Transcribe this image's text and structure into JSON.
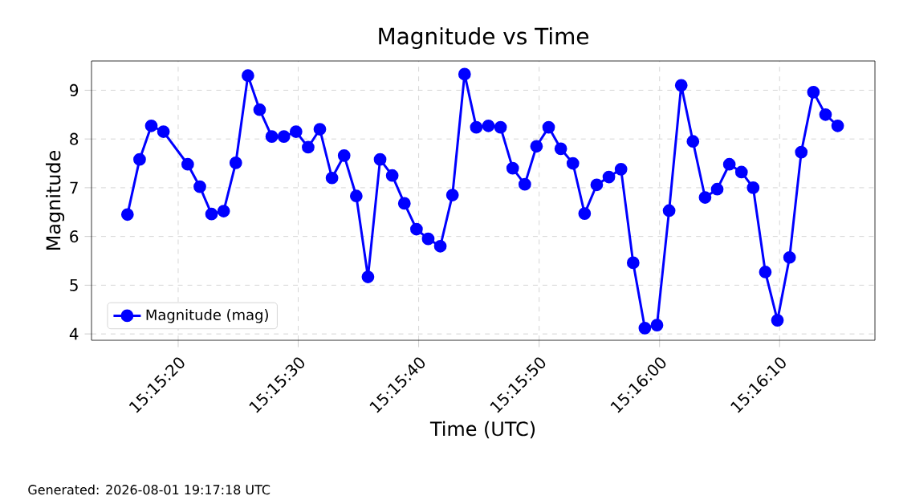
{
  "chart_data": {
    "type": "line",
    "title": "Magnitude vs Time",
    "xlabel": "Time (UTC)",
    "ylabel": "Magnitude",
    "annotations": [
      "Generated: 2026-08-01 19:17:18 UTC"
    ],
    "x": [
      15.25439,
      15.25467,
      15.25494,
      15.25522,
      15.25578,
      15.25606,
      15.25633,
      15.25661,
      15.25689,
      15.25717,
      15.25744,
      15.25772,
      15.258,
      15.25828,
      15.25856,
      15.25883,
      15.25911,
      15.25939,
      15.25967,
      15.25994,
      15.26022,
      15.2605,
      15.26078,
      15.26106,
      15.26133,
      15.26161,
      15.26189,
      15.26217,
      15.26244,
      15.26272,
      15.263,
      15.26328,
      15.26356,
      15.26383,
      15.26411,
      15.26439,
      15.26467,
      15.26494,
      15.26522,
      15.2655,
      15.26578,
      15.26606,
      15.26633,
      15.26661,
      15.26689,
      15.26717,
      15.26744,
      15.26772,
      15.268,
      15.26828,
      15.26856,
      15.26883,
      15.26911,
      15.26939,
      15.26967,
      15.26994,
      15.27022,
      15.2705,
      15.27078
    ],
    "series": [
      {
        "name": "Magnitude (mag)",
        "color": "#0000ff",
        "values": [
          6.45,
          7.58,
          8.27,
          8.15,
          7.48,
          7.02,
          6.46,
          6.52,
          7.51,
          9.3,
          8.6,
          8.05,
          8.05,
          8.15,
          7.83,
          8.2,
          7.2,
          7.66,
          6.83,
          5.17,
          7.58,
          7.25,
          6.68,
          6.15,
          5.95,
          5.8,
          6.85,
          9.33,
          8.24,
          8.27,
          8.24,
          7.4,
          7.07,
          7.85,
          8.24,
          7.8,
          7.5,
          6.47,
          7.06,
          7.22,
          7.38,
          5.46,
          4.12,
          4.18,
          6.53,
          9.1,
          7.95,
          6.8,
          6.97,
          7.48,
          7.32,
          7.0,
          5.27,
          4.28,
          5.57,
          7.73,
          8.96,
          8.5,
          8.27
        ]
      }
    ],
    "xlim": [
      15.25356,
      15.27164
    ],
    "ylim": [
      3.87,
      9.6
    ],
    "xticks": [
      {
        "value": 15.25556,
        "label": "15:15:20"
      },
      {
        "value": 15.25833,
        "label": "15:15:30"
      },
      {
        "value": 15.26111,
        "label": "15:15:40"
      },
      {
        "value": 15.26389,
        "label": "15:15:50"
      },
      {
        "value": 15.26667,
        "label": "15:16:00"
      },
      {
        "value": 15.26944,
        "label": "15:16:10"
      }
    ],
    "yticks": [
      4,
      5,
      6,
      7,
      8,
      9
    ],
    "grid": true,
    "legend": "bottom left",
    "marker": "circle",
    "line_style": "solid"
  }
}
